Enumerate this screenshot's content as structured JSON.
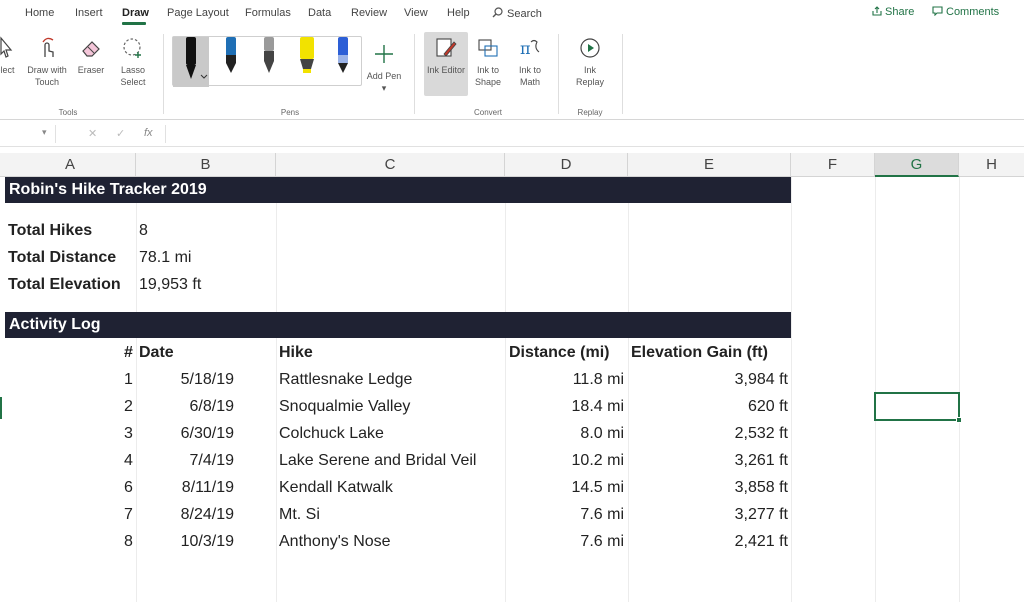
{
  "ribbon": {
    "tabs": [
      "Home",
      "Insert",
      "Draw",
      "Page Layout",
      "Formulas",
      "Data",
      "Review",
      "View",
      "Help"
    ],
    "active_tab": "Draw",
    "search_label": "Search",
    "share_label": "Share",
    "comments_label": "Comments",
    "tools": {
      "select_label": "elect",
      "draw_with_touch_label": "Draw with Touch",
      "eraser_label": "Eraser",
      "lasso_select_label": "Lasso Select",
      "group_label": "Tools"
    },
    "pens": {
      "add_pen_label": "Add Pen",
      "group_label": "Pens",
      "colors": [
        "#111111",
        "#1f6fb5",
        "#444444",
        "#f2e200",
        "#2d5fd6"
      ]
    },
    "convert": {
      "ink_editor_label": "Ink Editor",
      "ink_to_shape_label": "Ink to Shape",
      "ink_to_math_label": "Ink to Math",
      "group_label": "Convert"
    },
    "replay": {
      "ink_replay_label": "Ink Replay",
      "group_label": "Replay"
    }
  },
  "formula_bar": {
    "cancel": "✕",
    "enter": "✓",
    "fx": "fx"
  },
  "columns": [
    "A",
    "B",
    "C",
    "D",
    "E",
    "F",
    "G",
    "H"
  ],
  "selected_column": "G",
  "sheet": {
    "title": "Robin's Hike Tracker 2019",
    "summary": [
      {
        "label": "Total Hikes",
        "value": "8"
      },
      {
        "label": "Total Distance",
        "value": "78.1 mi"
      },
      {
        "label": "Total Elevation",
        "value": "19,953 ft"
      }
    ],
    "log_title": "Activity Log",
    "headers": {
      "num": "#",
      "date": "Date",
      "hike": "Hike",
      "distance": "Distance (mi)",
      "elevation": "Elevation Gain (ft)"
    },
    "rows": [
      {
        "num": "1",
        "date": "5/18/19",
        "hike": "Rattlesnake Ledge",
        "distance": "11.8 mi",
        "elevation": "3,984 ft"
      },
      {
        "num": "2",
        "date": "6/8/19",
        "hike": "Snoqualmie Valley",
        "distance": "18.4 mi",
        "elevation": "620 ft"
      },
      {
        "num": "3",
        "date": "6/30/19",
        "hike": "Colchuck Lake",
        "distance": "8.0 mi",
        "elevation": "2,532 ft"
      },
      {
        "num": "4",
        "date": "7/4/19",
        "hike": "Lake Serene and Bridal Veil",
        "distance": "10.2 mi",
        "elevation": "3,261 ft"
      },
      {
        "num": "6",
        "date": "8/11/19",
        "hike": "Kendall Katwalk",
        "distance": "14.5 mi",
        "elevation": "3,858 ft"
      },
      {
        "num": "7",
        "date": "8/24/19",
        "hike": "Mt. Si",
        "distance": "7.6 mi",
        "elevation": "3,277 ft"
      },
      {
        "num": "8",
        "date": "10/3/19",
        "hike": "Anthony's Nose",
        "distance": "7.6 mi",
        "elevation": "2,421 ft"
      }
    ]
  },
  "accent_color": "#217346",
  "banner_color": "#1f2233"
}
